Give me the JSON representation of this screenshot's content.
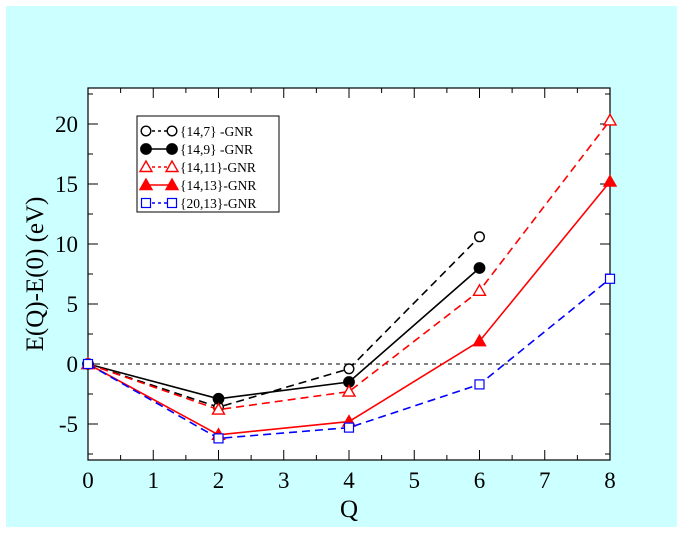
{
  "chart_data": {
    "type": "line",
    "xlabel": "Q",
    "ylabel": "E(Q)-E(0) (eV)",
    "xlim": [
      0,
      8
    ],
    "ylim": [
      -8,
      23
    ],
    "xticks": [
      "0",
      "1",
      "2",
      "3",
      "4",
      "5",
      "6",
      "7",
      "8"
    ],
    "yticks": [
      "-5",
      "0",
      "5",
      "10",
      "15",
      "20"
    ],
    "reference_line": {
      "y": 0,
      "style": "dashed",
      "color": "#000000"
    },
    "legend_position": "top-left",
    "series": [
      {
        "name": "{14,7} -GNR",
        "color": "#000000",
        "dash": true,
        "marker": "circle",
        "filled": false,
        "x": [
          0,
          2,
          4,
          6
        ],
        "y": [
          0,
          -3.6,
          -0.4,
          10.6
        ]
      },
      {
        "name": "{14,9} -GNR",
        "color": "#000000",
        "dash": false,
        "marker": "circle",
        "filled": true,
        "x": [
          0,
          2,
          4,
          6
        ],
        "y": [
          0,
          -2.9,
          -1.5,
          8.0
        ]
      },
      {
        "name": "{14,11}-GNR",
        "color": "#ff0000",
        "dash": true,
        "marker": "triangle",
        "filled": false,
        "x": [
          0,
          2,
          4,
          6,
          8
        ],
        "y": [
          0,
          -3.8,
          -2.3,
          6.1,
          20.3
        ]
      },
      {
        "name": "{14,13}-GNR",
        "color": "#ff0000",
        "dash": false,
        "marker": "triangle",
        "filled": true,
        "x": [
          0,
          2,
          4,
          6,
          8
        ],
        "y": [
          0,
          -5.9,
          -4.8,
          1.9,
          15.2
        ]
      },
      {
        "name": "{20,13}-GNR",
        "color": "#0000ff",
        "dash": true,
        "marker": "square",
        "filled": false,
        "x": [
          0,
          2,
          4,
          6,
          8
        ],
        "y": [
          0,
          -6.2,
          -5.3,
          -1.7,
          7.1
        ]
      }
    ]
  }
}
